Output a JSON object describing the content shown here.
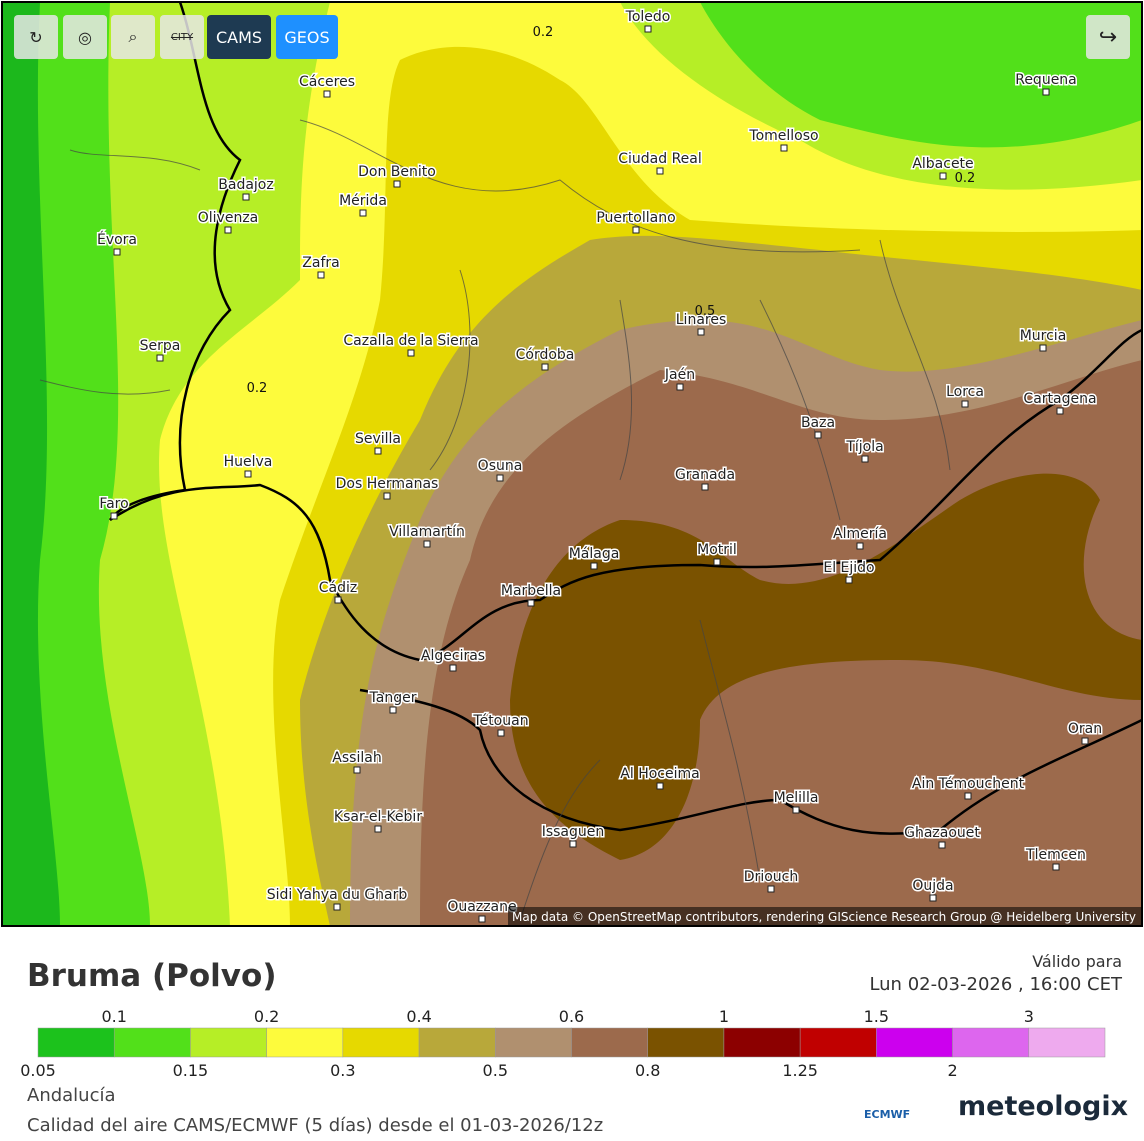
{
  "header": {
    "buttons": [
      "CITY",
      "CAMS",
      "GEOS"
    ]
  },
  "map": {
    "cities": [
      {
        "name": "Toledo"
      },
      {
        "name": "Cáceres"
      },
      {
        "name": "Requena"
      },
      {
        "name": "Tomelloso"
      },
      {
        "name": "Ciudad Real"
      },
      {
        "name": "Albacete"
      },
      {
        "name": "Badajoz"
      },
      {
        "name": "Don Benito"
      },
      {
        "name": "Mérida"
      },
      {
        "name": "Olivenza"
      },
      {
        "name": "Puertollano"
      },
      {
        "name": "Évora"
      },
      {
        "name": "Zafra"
      },
      {
        "name": "Linares"
      },
      {
        "name": "Murcia"
      },
      {
        "name": "Serpa"
      },
      {
        "name": "Cazalla de la Sierra"
      },
      {
        "name": "Córdoba"
      },
      {
        "name": "Jaén"
      },
      {
        "name": "Lorca"
      },
      {
        "name": "Cartagena"
      },
      {
        "name": "Baza"
      },
      {
        "name": "Sevilla"
      },
      {
        "name": "Tíjola"
      },
      {
        "name": "Huelva"
      },
      {
        "name": "Osuna"
      },
      {
        "name": "Granada"
      },
      {
        "name": "Dos Hermanas"
      },
      {
        "name": "Faro"
      },
      {
        "name": "Villamartín"
      },
      {
        "name": "Almería"
      },
      {
        "name": "Málaga"
      },
      {
        "name": "Motril"
      },
      {
        "name": "El Ejido"
      },
      {
        "name": "Marbella"
      },
      {
        "name": "Cádiz"
      },
      {
        "name": "Algeciras"
      },
      {
        "name": "Tanger"
      },
      {
        "name": "Tétouan"
      },
      {
        "name": "Oran"
      },
      {
        "name": "Assilah"
      },
      {
        "name": "Al Hoceima"
      },
      {
        "name": "Ain Témouchent"
      },
      {
        "name": "Melilla"
      },
      {
        "name": "Ksar-el-Kebir"
      },
      {
        "name": "Issaguen"
      },
      {
        "name": "Ghazaouet"
      },
      {
        "name": "Tlemcen"
      },
      {
        "name": "Driouch"
      },
      {
        "name": "Oujda"
      },
      {
        "name": "Sidi Yahya du Gharb"
      },
      {
        "name": "Ouazzane"
      }
    ],
    "isolines": [
      "0.2",
      "0.2",
      "0.2",
      "0.5"
    ],
    "attribution": "Map data © OpenStreetMap contributors, rendering GIScience Research Group @ Heidelberg University"
  },
  "footer": {
    "title": "Bruma (Polvo)",
    "valid_label": "Válido para",
    "valid_time": "Lun 02-03-2026 , 16:00 CET",
    "region": "Andalucía",
    "source": "Calidad del aire CAMS/ECMWF (5 días) desde el 01-03-2026/12z",
    "logo_ecmwf": "ECMWF",
    "logo_brand": "meteologix"
  },
  "legend": {
    "labels": [
      "0.05",
      "0.1",
      "0.15",
      "0.2",
      "0.3",
      "0.4",
      "0.5",
      "0.6",
      "0.8",
      "1",
      "1.25",
      "1.5",
      "2",
      "3"
    ],
    "colors": [
      "#1cc21c",
      "#52e01a",
      "#b6ee26",
      "#fdfb3c",
      "#e6d900",
      "#b8a83a",
      "#b0906f",
      "#9c6a4c",
      "#7a5200",
      "#8c0000",
      "#c00000",
      "#cc00ee",
      "#dd66ee",
      "#eeaaee"
    ]
  }
}
